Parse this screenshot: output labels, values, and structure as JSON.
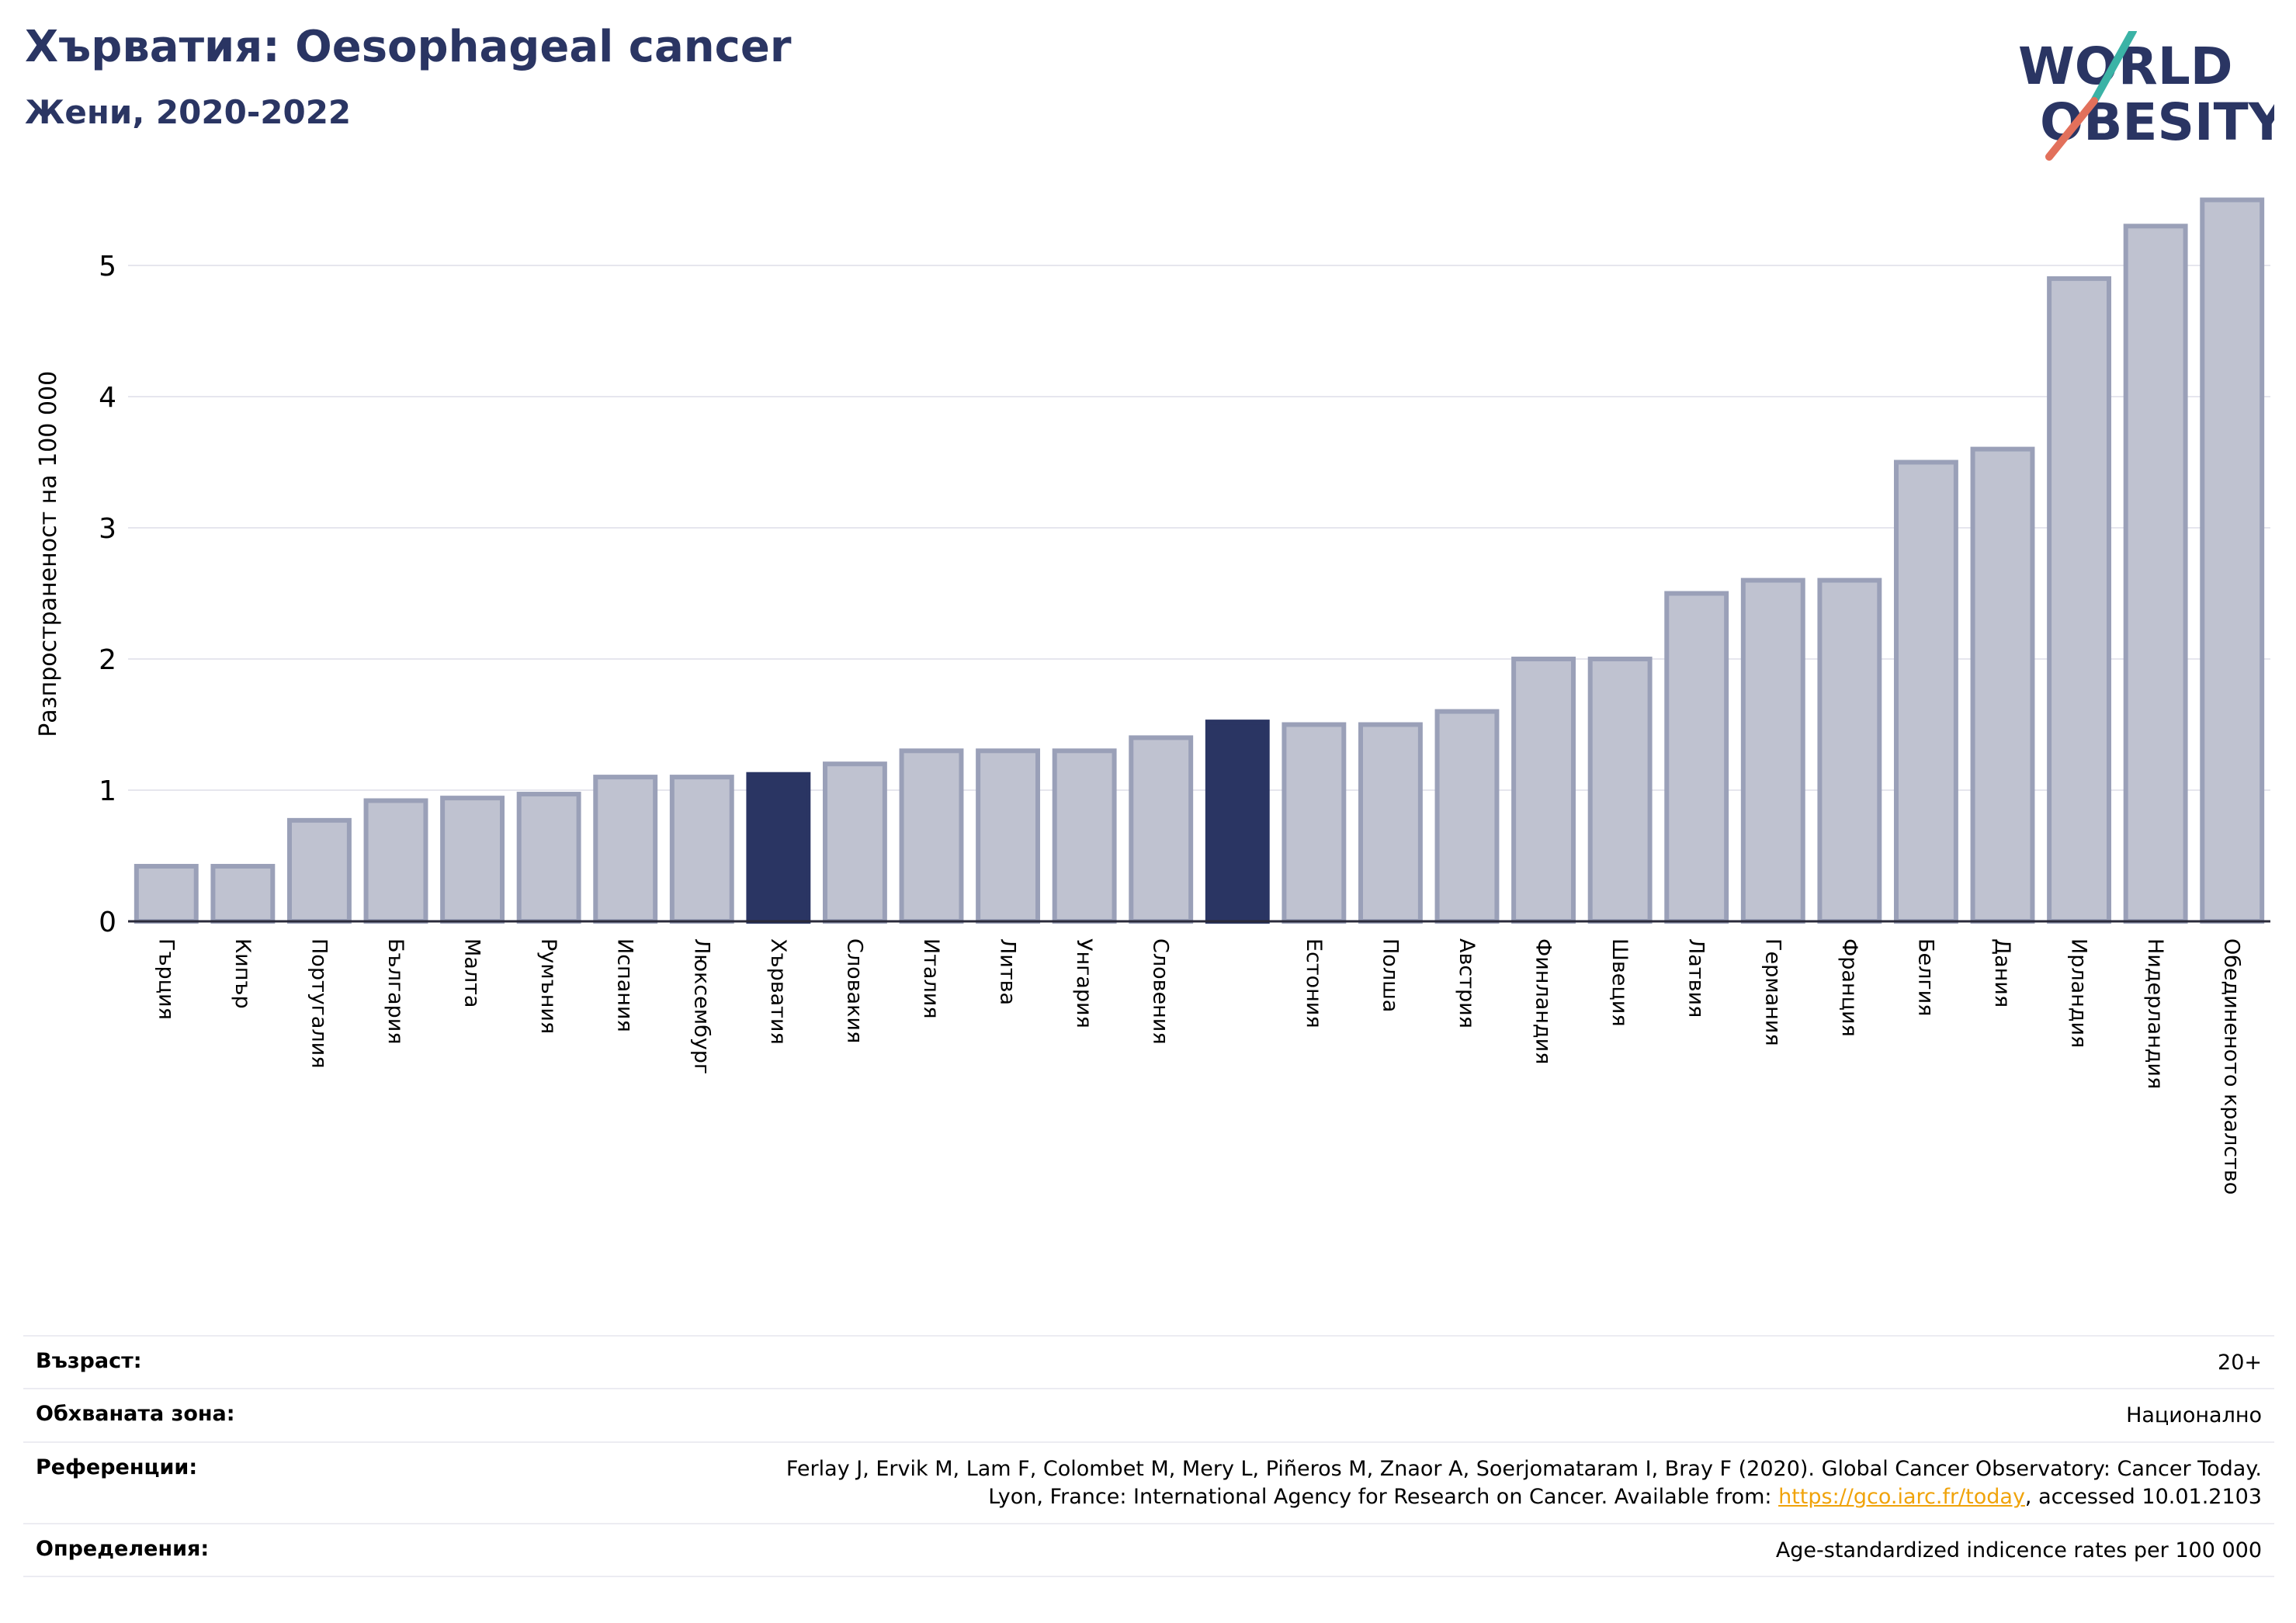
{
  "header": {
    "title": "Хърватия: Oesophageal cancer",
    "subtitle": "Жени, 2020-2022"
  },
  "logo": {
    "line1": "WORLD",
    "line2": "OBESITY"
  },
  "colors": {
    "bar": "#bfc2d0",
    "bar_edge": "#9aa0b8",
    "highlight": "#2a3563",
    "title": "#2a3563",
    "grid": "#e6e6ee",
    "link": "#f0a30a"
  },
  "chart_data": {
    "type": "bar",
    "ylabel": "Разпространеност  на 100 000",
    "xlabel": "",
    "ylim": [
      0,
      5.6
    ],
    "yticks": [
      0,
      1,
      2,
      3,
      4,
      5
    ],
    "grid": true,
    "categories": [
      "Гърция",
      "Кипър",
      "Португалия",
      "България",
      "Малта",
      "Румъния",
      "Испания",
      "Люксембург",
      "Хърватия",
      "Словакия",
      "Италия",
      "Литва",
      "Унгария",
      "Словения",
      "",
      "Естония",
      "Полша",
      "Австрия",
      "Финландия",
      "Швеция",
      "Латвия",
      "Германия",
      "Франция",
      "Белгия",
      "Дания",
      "Ирландия",
      "Нидерландия",
      "Обединеното кралство"
    ],
    "values": [
      0.42,
      0.42,
      0.77,
      0.92,
      0.94,
      0.97,
      1.1,
      1.1,
      1.12,
      1.2,
      1.3,
      1.3,
      1.3,
      1.4,
      1.52,
      1.5,
      1.5,
      1.6,
      2.0,
      2.0,
      2.5,
      2.6,
      2.6,
      3.5,
      3.6,
      4.9,
      5.3,
      5.5
    ],
    "highlight": [
      "Хърватия",
      ""
    ]
  },
  "info": [
    {
      "label": "Възраст:",
      "value": "20+"
    },
    {
      "label": "Обхваната зона:",
      "value": "Национално"
    },
    {
      "label": "Референции:",
      "value_line1": "Ferlay J, Ervik M, Lam F, Colombet M, Mery L, Piñeros M, Znaor A, Soerjomataram I, Bray F (2020). Global Cancer Observatory: Cancer Today.",
      "value_line2_pre": "Lyon, France: International Agency for Research on Cancer. Available from: ",
      "value_link": "https://gco.iarc.fr/today",
      "value_line2_post": ", accessed 10.01.2103"
    },
    {
      "label": "Определения:",
      "value": "Age-standardized indicence rates per 100 000"
    }
  ]
}
